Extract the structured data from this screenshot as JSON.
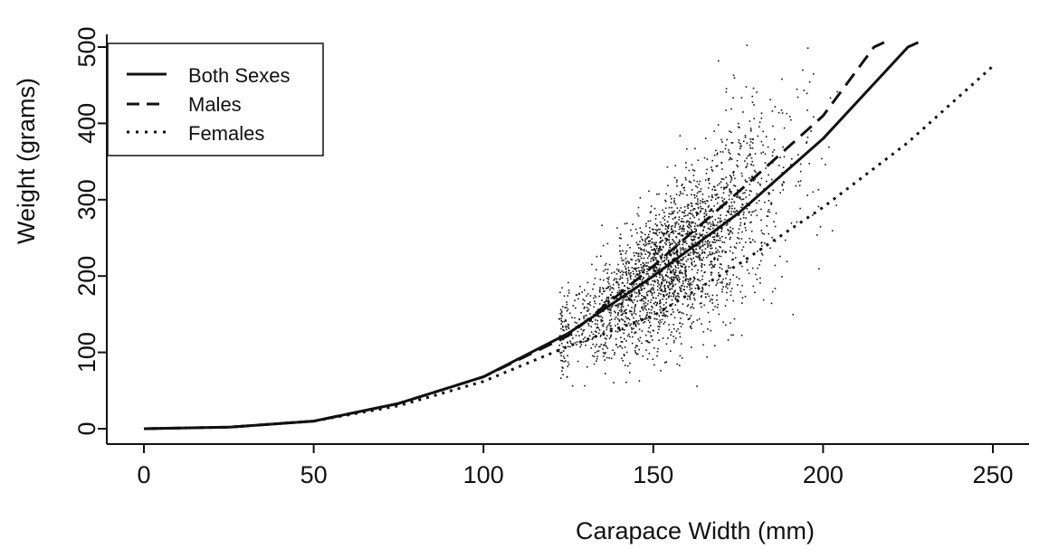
{
  "chart_data": {
    "type": "scatter",
    "xlabel": "Carapace Width (mm)",
    "ylabel": "Weight (grams)",
    "xlim": [
      0,
      250
    ],
    "ylim": [
      0,
      500
    ],
    "x_ticks": [
      "0",
      "50",
      "100",
      "150",
      "200",
      "250"
    ],
    "y_ticks": [
      "0",
      "100",
      "200",
      "300",
      "400",
      "500"
    ],
    "grid": false,
    "legend_position": "top-left",
    "legend": [
      "Both Sexes",
      "Males",
      "Females"
    ],
    "series": [
      {
        "name": "Both Sexes",
        "style": "solid",
        "x": [
          0,
          25,
          50,
          75,
          100,
          125,
          150,
          175,
          200,
          225,
          228
        ],
        "y": [
          0,
          2,
          10,
          33,
          68,
          125,
          200,
          282,
          380,
          500,
          510
        ]
      },
      {
        "name": "Males",
        "style": "dashed",
        "x": [
          0,
          25,
          50,
          75,
          100,
          125,
          150,
          175,
          200,
          215,
          218
        ],
        "y": [
          0,
          2,
          10,
          33,
          68,
          122,
          213,
          310,
          410,
          500,
          520
        ]
      },
      {
        "name": "Females",
        "style": "dotted",
        "x": [
          0,
          25,
          50,
          75,
          100,
          125,
          150,
          175,
          200,
          225,
          250
        ],
        "y": [
          0,
          2,
          10,
          30,
          62,
          108,
          148,
          215,
          290,
          375,
          475
        ]
      }
    ],
    "scatter_summary": {
      "x_range": [
        122,
        204
      ],
      "y_range": [
        45,
        515
      ],
      "note_points_dense": true
    }
  }
}
